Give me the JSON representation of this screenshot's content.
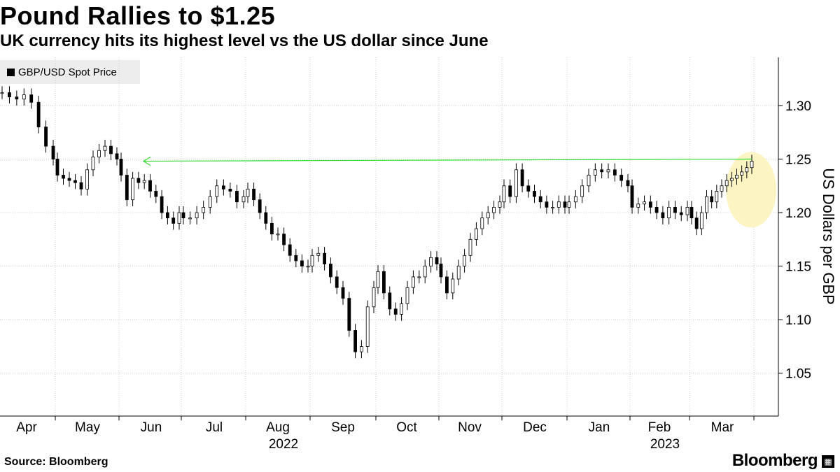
{
  "header": {
    "title": "Pound Rallies to $1.25",
    "subtitle": "UK currency hits its highest level vs the US dollar since June"
  },
  "legend": {
    "label": "GBP/USD Spot Price"
  },
  "footer": {
    "source": "Source: Bloomberg",
    "brand": "Bloomberg"
  },
  "colors": {
    "candle": "#000000",
    "grid": "#cccccc",
    "highlight_line": "#33dd33",
    "highlight_circle": "#fbf3b8",
    "legend_bg": "#ededed"
  },
  "chart_data": {
    "type": "line",
    "title": "Pound Rallies to $1.25",
    "subtitle": "UK currency hits its highest level vs the US dollar since June",
    "series": [
      {
        "name": "GBP/USD Spot Price",
        "style": "candlestick",
        "points": [
          [
            "Apr",
            1.312
          ],
          [
            "Apr",
            1.308
          ],
          [
            "Apr",
            1.306
          ],
          [
            "Apr",
            1.31
          ],
          [
            "Apr",
            1.303
          ],
          [
            "Apr",
            1.28
          ],
          [
            "Apr",
            1.262
          ],
          [
            "Apr",
            1.25
          ],
          [
            "May",
            1.235
          ],
          [
            "May",
            1.232
          ],
          [
            "May",
            1.23
          ],
          [
            "May",
            1.228
          ],
          [
            "May",
            1.222
          ],
          [
            "May",
            1.24
          ],
          [
            "May",
            1.252
          ],
          [
            "May",
            1.258
          ],
          [
            "May",
            1.262
          ],
          [
            "May",
            1.255
          ],
          [
            "May",
            1.25
          ],
          [
            "Jun",
            1.235
          ],
          [
            "Jun",
            1.212
          ],
          [
            "Jun",
            1.232
          ],
          [
            "Jun",
            1.228
          ],
          [
            "Jun",
            1.23
          ],
          [
            "Jun",
            1.22
          ],
          [
            "Jun",
            1.215
          ],
          [
            "Jun",
            1.2
          ],
          [
            "Jun",
            1.195
          ],
          [
            "Jun",
            1.19
          ],
          [
            "Jun",
            1.2
          ],
          [
            "Jul",
            1.195
          ],
          [
            "Jul",
            1.195
          ],
          [
            "Jul",
            1.2
          ],
          [
            "Jul",
            1.205
          ],
          [
            "Jul",
            1.215
          ],
          [
            "Jul",
            1.225
          ],
          [
            "Jul",
            1.222
          ],
          [
            "Jul",
            1.22
          ],
          [
            "Jul",
            1.21
          ],
          [
            "Jul",
            1.215
          ],
          [
            "Aug",
            1.222
          ],
          [
            "Aug",
            1.212
          ],
          [
            "Aug",
            1.2
          ],
          [
            "Aug",
            1.19
          ],
          [
            "Aug",
            1.18
          ],
          [
            "Aug",
            1.18
          ],
          [
            "Aug",
            1.17
          ],
          [
            "Aug",
            1.16
          ],
          [
            "Aug",
            1.155
          ],
          [
            "Aug",
            1.15
          ],
          [
            "Aug",
            1.15
          ],
          [
            "Sep",
            1.16
          ],
          [
            "Sep",
            1.162
          ],
          [
            "Sep",
            1.152
          ],
          [
            "Sep",
            1.14
          ],
          [
            "Sep",
            1.13
          ],
          [
            "Sep",
            1.12
          ],
          [
            "Sep",
            1.09
          ],
          [
            "Sep",
            1.07
          ],
          [
            "Sep",
            1.075
          ],
          [
            "Sep",
            1.112
          ],
          [
            "Sep",
            1.13
          ],
          [
            "Oct",
            1.145
          ],
          [
            "Oct",
            1.125
          ],
          [
            "Oct",
            1.11
          ],
          [
            "Oct",
            1.105
          ],
          [
            "Oct",
            1.115
          ],
          [
            "Oct",
            1.13
          ],
          [
            "Oct",
            1.14
          ],
          [
            "Oct",
            1.14
          ],
          [
            "Oct",
            1.15
          ],
          [
            "Oct",
            1.158
          ],
          [
            "Oct",
            1.152
          ],
          [
            "Nov",
            1.14
          ],
          [
            "Nov",
            1.125
          ],
          [
            "Nov",
            1.138
          ],
          [
            "Nov",
            1.15
          ],
          [
            "Nov",
            1.16
          ],
          [
            "Nov",
            1.175
          ],
          [
            "Nov",
            1.185
          ],
          [
            "Nov",
            1.195
          ],
          [
            "Nov",
            1.2
          ],
          [
            "Nov",
            1.205
          ],
          [
            "Nov",
            1.21
          ],
          [
            "Dec",
            1.225
          ],
          [
            "Dec",
            1.215
          ],
          [
            "Dec",
            1.24
          ],
          [
            "Dec",
            1.225
          ],
          [
            "Dec",
            1.22
          ],
          [
            "Dec",
            1.215
          ],
          [
            "Dec",
            1.21
          ],
          [
            "Dec",
            1.205
          ],
          [
            "Dec",
            1.205
          ],
          [
            "Dec",
            1.21
          ],
          [
            "Dec",
            1.205
          ],
          [
            "Jan",
            1.21
          ],
          [
            "Jan",
            1.215
          ],
          [
            "Jan",
            1.225
          ],
          [
            "Jan",
            1.235
          ],
          [
            "Jan",
            1.24
          ],
          [
            "Jan",
            1.238
          ],
          [
            "Jan",
            1.24
          ],
          [
            "Jan",
            1.235
          ],
          [
            "Jan",
            1.23
          ],
          [
            "Jan",
            1.225
          ],
          [
            "Feb",
            1.205
          ],
          [
            "Feb",
            1.208
          ],
          [
            "Feb",
            1.21
          ],
          [
            "Feb",
            1.205
          ],
          [
            "Feb",
            1.2
          ],
          [
            "Feb",
            1.195
          ],
          [
            "Feb",
            1.205
          ],
          [
            "Feb",
            1.2
          ],
          [
            "Feb",
            1.198
          ],
          [
            "Feb",
            1.205
          ],
          [
            "Mar",
            1.195
          ],
          [
            "Mar",
            1.185
          ],
          [
            "Mar",
            1.2
          ],
          [
            "Mar",
            1.215
          ],
          [
            "Mar",
            1.21
          ],
          [
            "Mar",
            1.22
          ],
          [
            "Mar",
            1.225
          ],
          [
            "Mar",
            1.23
          ],
          [
            "Mar",
            1.232
          ],
          [
            "Mar",
            1.235
          ],
          [
            "Mar",
            1.238
          ],
          [
            "Mar",
            1.242
          ],
          [
            "Mar",
            1.248
          ]
        ]
      }
    ],
    "x_labels": [
      "Apr",
      "May",
      "Jun",
      "Jul",
      "Aug",
      "Sep",
      "Oct",
      "Nov",
      "Dec",
      "Jan",
      "Feb",
      "Mar"
    ],
    "year_labels": [
      {
        "label": "2022",
        "month": "Aug"
      },
      {
        "label": "2023",
        "month": "Feb"
      }
    ],
    "ylabel": "US Dollars per GBP",
    "y_ticks": [
      "1.30",
      "1.25",
      "1.20",
      "1.15",
      "1.10",
      "1.05"
    ],
    "y_tick_values": [
      1.3,
      1.25,
      1.2,
      1.15,
      1.1,
      1.05
    ],
    "ylim": [
      1.01,
      1.345
    ],
    "grid": true,
    "annotations": [
      {
        "type": "horizontal-arrow",
        "value": 1.25,
        "from": "Jun",
        "to": "Mar",
        "color": "#33dd33"
      },
      {
        "type": "highlight-ellipse",
        "center_value": 1.22,
        "month": "Mar",
        "color": "#fbf3b8"
      }
    ],
    "legend": "top-left"
  }
}
